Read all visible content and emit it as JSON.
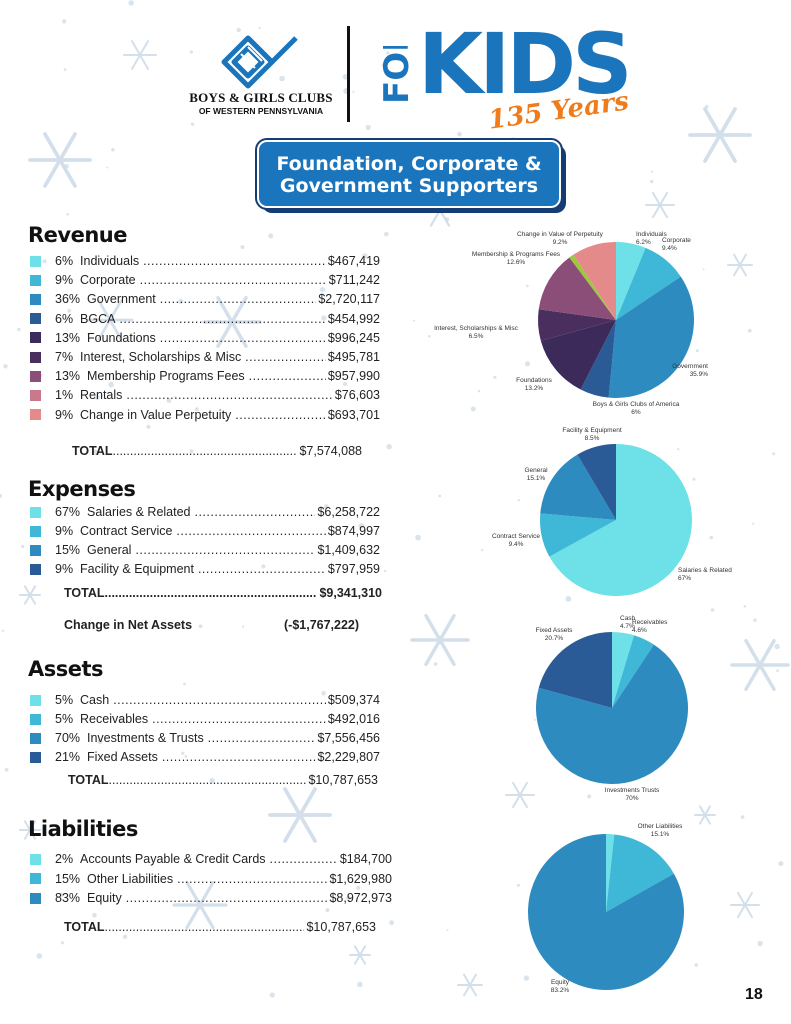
{
  "header": {
    "org_name": "BOYS & GIRLS CLUBS",
    "org_sub": "OF WESTERN PENNSYLVANIA",
    "campaign_for": "FOR",
    "campaign_kids": "KIDS",
    "campaign_years": "135 Years",
    "title_line1": "Foundation, Corporate &",
    "title_line2": "Government Supporters"
  },
  "colors": {
    "c1": "#6ee0e8",
    "c2": "#3fb7d6",
    "c3": "#2e8bc0",
    "c4": "#2a5b96",
    "c5": "#3b2a5a",
    "c6": "#4a2f5e",
    "c7": "#8a4e78",
    "c8": "#c77a8c",
    "c9": "#e58a8a",
    "lime": "#9bc93b",
    "brand_blue": "#1b75bc",
    "brand_orange": "#f07b1a",
    "snow": "#c9d8e6"
  },
  "revenue": {
    "heading": "Revenue",
    "items": [
      {
        "pct": "6%",
        "label": "Individuals",
        "amount": "$467,419"
      },
      {
        "pct": "9%",
        "label": "Corporate",
        "amount": "$711,242"
      },
      {
        "pct": "36%",
        "label": "Government",
        "amount": "$2,720,117"
      },
      {
        "pct": "6%",
        "label": "BGCA",
        "amount": "$454,992"
      },
      {
        "pct": "13%",
        "label": "Foundations",
        "amount": "$996,245"
      },
      {
        "pct": "7%",
        "label": "Interest, Scholarships & Misc",
        "amount": "$495,781"
      },
      {
        "pct": "13%",
        "label": "Membership Programs Fees",
        "amount": "$957,990"
      },
      {
        "pct": "1%",
        "label": "Rentals",
        "amount": "$76,603"
      },
      {
        "pct": "9%",
        "label": "Change in Value Perpetuity",
        "amount": "$693,701"
      }
    ],
    "total_label": "TOTAL",
    "total_amount": "$7,574,088"
  },
  "expenses": {
    "heading": "Expenses",
    "items": [
      {
        "pct": "67%",
        "label": "Salaries & Related",
        "amount": "$6,258,722"
      },
      {
        "pct": "9%",
        "label": "Contract Service",
        "amount": "$874,997"
      },
      {
        "pct": "15%",
        "label": "General",
        "amount": "$1,409,632"
      },
      {
        "pct": "9%",
        "label": "Facility & Equipment",
        "amount": "$797,959"
      }
    ],
    "total_label": "TOTAL",
    "total_amount": "$9,341,310",
    "net_label": "Change in Net Assets",
    "net_amount": "(-$1,767,222)"
  },
  "assets": {
    "heading": "Assets",
    "items": [
      {
        "pct": "5%",
        "label": "Cash",
        "amount": "$509,374"
      },
      {
        "pct": "5%",
        "label": "Receivables",
        "amount": "$492,016"
      },
      {
        "pct": "70%",
        "label": "Investments & Trusts",
        "amount": "$7,556,456"
      },
      {
        "pct": "21%",
        "label": "Fixed Assets",
        "amount": "$2,229,807"
      }
    ],
    "total_label": "TOTAL",
    "total_amount": "$10,787,653"
  },
  "liabilities": {
    "heading": "Liabilities",
    "items": [
      {
        "pct": "2%",
        "label": "Accounts Payable & Credit Cards",
        "amount": "$184,700"
      },
      {
        "pct": "15%",
        "label": "Other Liabilities",
        "amount": "$1,629,980"
      },
      {
        "pct": "83%",
        "label": "Equity",
        "amount": "$8,972,973"
      }
    ],
    "total_label": "TOTAL",
    "total_amount": "$10,787,653"
  },
  "chart_data": [
    {
      "type": "pie",
      "title": "",
      "slices": [
        {
          "label": "Individuals",
          "pct_label": "6.2%",
          "value": 6.2,
          "color": "#6ee0e8"
        },
        {
          "label": "Corporate",
          "pct_label": "9.4%",
          "value": 9.4,
          "color": "#3fb7d6"
        },
        {
          "label": "Government",
          "pct_label": "35.9%",
          "value": 35.9,
          "color": "#2e8bc0"
        },
        {
          "label": "Boys & Girls Clubs of America",
          "pct_label": "6%",
          "value": 6.0,
          "color": "#2a5b96"
        },
        {
          "label": "Foundations",
          "pct_label": "13.2%",
          "value": 13.2,
          "color": "#3b2a5a"
        },
        {
          "label": "Interest, Scholarships & Misc",
          "pct_label": "6.5%",
          "value": 6.5,
          "color": "#4a2f5e"
        },
        {
          "label": "Membership & Programs Fees",
          "pct_label": "12.6%",
          "value": 12.6,
          "color": "#8a4e78"
        },
        {
          "label": "",
          "pct_label": "",
          "value": 1.0,
          "color": "#9bc93b"
        },
        {
          "label": "Change in Value of Perpetuity",
          "pct_label": "9.2%",
          "value": 9.2,
          "color": "#e58a8a"
        }
      ]
    },
    {
      "type": "pie",
      "title": "",
      "slices": [
        {
          "label": "Salaries & Related",
          "pct_label": "67%",
          "value": 67.0,
          "color": "#6ee0e8"
        },
        {
          "label": "Contract Service",
          "pct_label": "9.4%",
          "value": 9.4,
          "color": "#3fb7d6"
        },
        {
          "label": "General",
          "pct_label": "15.1%",
          "value": 15.1,
          "color": "#2e8bc0"
        },
        {
          "label": "Facility & Equipment",
          "pct_label": "8.5%",
          "value": 8.5,
          "color": "#2a5b96"
        }
      ]
    },
    {
      "type": "pie",
      "title": "",
      "slices": [
        {
          "label": "Cash",
          "pct_label": "4.7%",
          "value": 4.7,
          "color": "#6ee0e8"
        },
        {
          "label": "Receivables",
          "pct_label": "4.6%",
          "value": 4.6,
          "color": "#3fb7d6"
        },
        {
          "label": "Investments Trusts",
          "pct_label": "70%",
          "value": 70.0,
          "color": "#2e8bc0"
        },
        {
          "label": "Fixed Assets",
          "pct_label": "20.7%",
          "value": 20.7,
          "color": "#2a5b96"
        }
      ]
    },
    {
      "type": "pie",
      "title": "",
      "slices": [
        {
          "label": "",
          "pct_label": "",
          "value": 1.7,
          "color": "#6ee0e8"
        },
        {
          "label": "Other Liabilities",
          "pct_label": "15.1%",
          "value": 15.1,
          "color": "#3fb7d6"
        },
        {
          "label": "Equity",
          "pct_label": "83.2%",
          "value": 83.2,
          "color": "#2e8bc0"
        }
      ]
    }
  ],
  "page_number": "18"
}
